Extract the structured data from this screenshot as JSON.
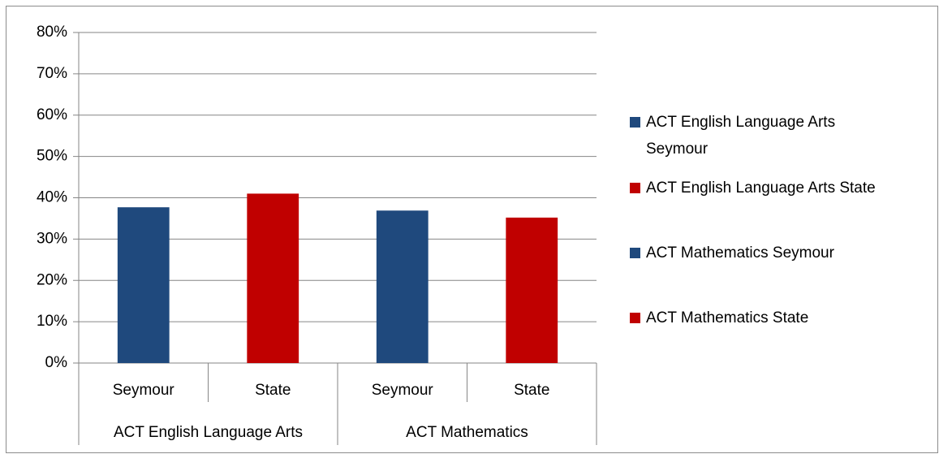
{
  "chart_data": {
    "type": "bar",
    "categories": [
      "Seymour",
      "State",
      "Seymour",
      "State"
    ],
    "groups": [
      "ACT English Language Arts",
      "ACT Mathematics"
    ],
    "series": [
      {
        "name": "ACT English Language Arts Seymour",
        "color": "#1f497d",
        "values": [
          37.7,
          null,
          null,
          null
        ]
      },
      {
        "name": "ACT English Language Arts State",
        "color": "#c00000",
        "values": [
          null,
          41,
          null,
          null
        ]
      },
      {
        "name": "ACT Mathematics Seymour",
        "color": "#1f497d",
        "values": [
          null,
          null,
          36.9,
          null
        ]
      },
      {
        "name": "ACT Mathematics State",
        "color": "#c00000",
        "values": [
          null,
          null,
          null,
          35.2
        ]
      }
    ],
    "ylim": [
      0,
      80
    ],
    "yticks": [
      {
        "value": 0,
        "label": "0%"
      },
      {
        "value": 10,
        "label": "10%"
      },
      {
        "value": 20,
        "label": "20%"
      },
      {
        "value": 30,
        "label": "30%"
      },
      {
        "value": 40,
        "label": "40%"
      },
      {
        "value": 50,
        "label": "50%"
      },
      {
        "value": 60,
        "label": "60%"
      },
      {
        "value": 70,
        "label": "70%"
      },
      {
        "value": 80,
        "label": "80%"
      }
    ],
    "grid": true,
    "legend": "right"
  }
}
